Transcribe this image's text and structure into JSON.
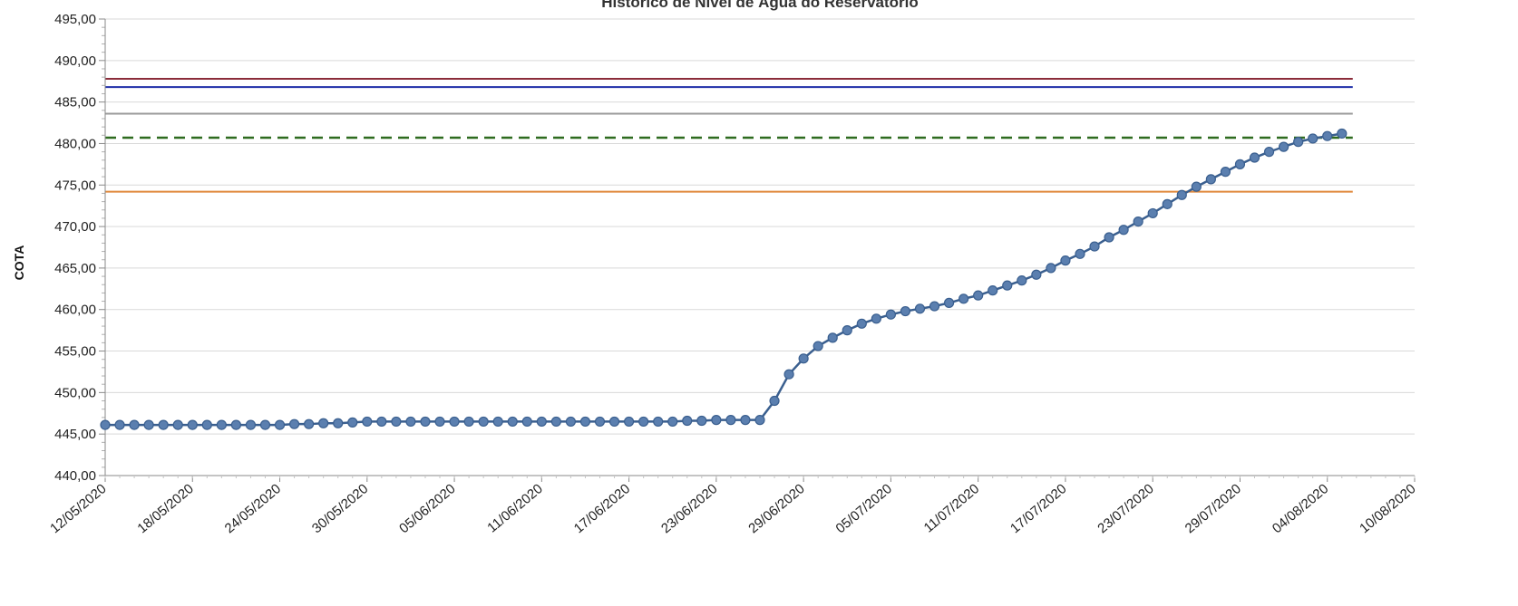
{
  "chart_data": {
    "type": "line",
    "title": "Histórico de Nível de Água do Reservatório",
    "ylabel": "COTA",
    "xlabel": "",
    "ylim": [
      440,
      495
    ],
    "y_ticks": [
      "440,00",
      "445,00",
      "450,00",
      "455,00",
      "460,00",
      "465,00",
      "470,00",
      "475,00",
      "480,00",
      "485,00",
      "490,00",
      "495,00"
    ],
    "x_tick_labels": [
      "12/05/2020",
      "18/05/2020",
      "24/05/2020",
      "30/05/2020",
      "05/06/2020",
      "11/06/2020",
      "17/06/2020",
      "23/06/2020",
      "29/06/2020",
      "05/07/2020",
      "11/07/2020",
      "17/07/2020",
      "23/07/2020",
      "29/07/2020",
      "04/08/2020",
      "10/08/2020"
    ],
    "grid": true,
    "reference_lines": [
      {
        "y": 487.8,
        "color": "#8B2C3A",
        "style": "solid"
      },
      {
        "y": 486.8,
        "color": "#1F2FA8",
        "style": "solid"
      },
      {
        "y": 483.6,
        "color": "#9A9A9A",
        "style": "solid"
      },
      {
        "y": 480.7,
        "color": "#2E6B1F",
        "style": "dashed"
      },
      {
        "y": 474.2,
        "color": "#E0883A",
        "style": "solid"
      }
    ],
    "series": [
      {
        "color": "#3A5F8F",
        "marker_color": "#5B7FAF",
        "x": [
          "12/05/2020",
          "13/05/2020",
          "14/05/2020",
          "15/05/2020",
          "16/05/2020",
          "17/05/2020",
          "18/05/2020",
          "19/05/2020",
          "20/05/2020",
          "21/05/2020",
          "22/05/2020",
          "23/05/2020",
          "24/05/2020",
          "25/05/2020",
          "26/05/2020",
          "27/05/2020",
          "28/05/2020",
          "29/05/2020",
          "30/05/2020",
          "31/05/2020",
          "01/06/2020",
          "02/06/2020",
          "03/06/2020",
          "04/06/2020",
          "05/06/2020",
          "06/06/2020",
          "07/06/2020",
          "08/06/2020",
          "09/06/2020",
          "10/06/2020",
          "11/06/2020",
          "12/06/2020",
          "13/06/2020",
          "14/06/2020",
          "15/06/2020",
          "16/06/2020",
          "17/06/2020",
          "18/06/2020",
          "19/06/2020",
          "20/06/2020",
          "21/06/2020",
          "22/06/2020",
          "23/06/2020",
          "24/06/2020",
          "25/06/2020",
          "26/06/2020",
          "27/06/2020",
          "28/06/2020",
          "29/06/2020",
          "30/06/2020",
          "01/07/2020",
          "02/07/2020",
          "03/07/2020",
          "04/07/2020",
          "05/07/2020",
          "06/07/2020",
          "07/07/2020",
          "08/07/2020",
          "09/07/2020",
          "10/07/2020",
          "11/07/2020",
          "12/07/2020",
          "13/07/2020",
          "14/07/2020",
          "15/07/2020",
          "16/07/2020",
          "17/07/2020",
          "18/07/2020",
          "19/07/2020",
          "20/07/2020",
          "21/07/2020",
          "22/07/2020",
          "23/07/2020",
          "24/07/2020",
          "25/07/2020",
          "26/07/2020",
          "27/07/2020",
          "28/07/2020",
          "29/07/2020",
          "30/07/2020",
          "31/07/2020",
          "01/08/2020",
          "02/08/2020",
          "03/08/2020",
          "04/08/2020",
          "05/08/2020"
        ],
        "y": [
          446.1,
          446.1,
          446.1,
          446.1,
          446.1,
          446.1,
          446.1,
          446.1,
          446.1,
          446.1,
          446.1,
          446.1,
          446.1,
          446.2,
          446.2,
          446.3,
          446.3,
          446.4,
          446.5,
          446.5,
          446.5,
          446.5,
          446.5,
          446.5,
          446.5,
          446.5,
          446.5,
          446.5,
          446.5,
          446.5,
          446.5,
          446.5,
          446.5,
          446.5,
          446.5,
          446.5,
          446.5,
          446.5,
          446.5,
          446.5,
          446.6,
          446.6,
          446.7,
          446.7,
          446.7,
          446.7,
          449.0,
          452.2,
          454.1,
          455.6,
          456.6,
          457.5,
          458.3,
          458.9,
          459.4,
          459.8,
          460.1,
          460.4,
          460.8,
          461.3,
          461.7,
          462.3,
          462.9,
          463.5,
          464.2,
          465.0,
          465.9,
          466.7,
          467.6,
          468.7,
          469.6,
          470.6,
          471.6,
          472.7,
          473.8,
          474.8,
          475.7,
          476.6,
          477.5,
          478.3,
          479.0,
          479.6,
          480.2,
          480.6,
          480.9,
          481.2
        ]
      }
    ]
  }
}
